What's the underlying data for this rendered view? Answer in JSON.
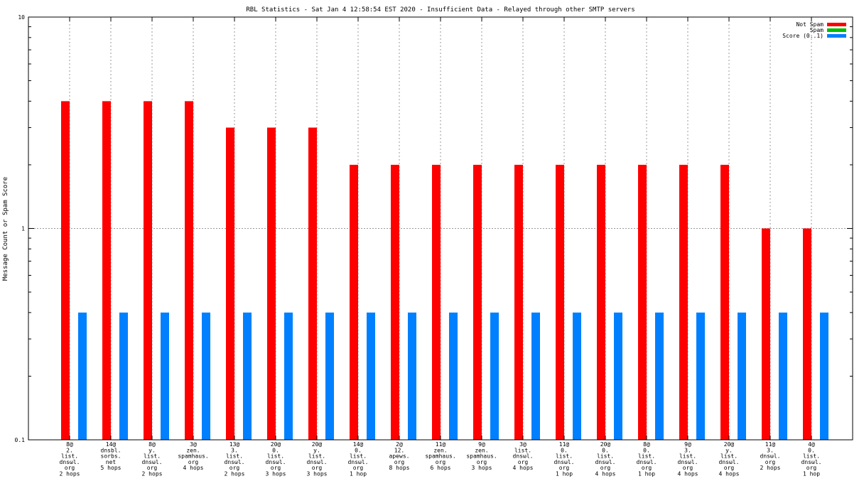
{
  "chart_data": {
    "type": "bar",
    "title": "RBL Statistics - Sat Jan  4 12:58:54 EST 2020 - Insufficient Data - Relayed through other SMTP servers",
    "ylabel": "Message Count or Spam Score",
    "yscale": "log",
    "ylim": [
      0.1,
      10
    ],
    "yticks": [
      "10",
      "1",
      "0.1"
    ],
    "grid": true,
    "legend_position": "top-right",
    "categories": [
      [
        "8@",
        "2.",
        "list.",
        "dnsωl.",
        "org",
        "2 hops"
      ],
      [
        "14@",
        "dnsbl.",
        "sorbs.",
        "net",
        "5 hops"
      ],
      [
        "8@",
        "y.",
        "list.",
        "dnsωl.",
        "org",
        "2 hops"
      ],
      [
        "3@",
        "zen.",
        "spamhaus.",
        "org",
        "4 hops"
      ],
      [
        "13@",
        "3.",
        "list.",
        "dnsωl.",
        "org",
        "2 hops"
      ],
      [
        "20@",
        "0.",
        "list.",
        "dnsωl.",
        "org",
        "3 hops"
      ],
      [
        "20@",
        "y.",
        "list.",
        "dnsωl.",
        "org",
        "3 hops"
      ],
      [
        "14@",
        "0.",
        "list.",
        "dnsωl.",
        "org",
        "1 hop"
      ],
      [
        "2@",
        "12.",
        "apews.",
        "org",
        "8 hops"
      ],
      [
        "11@",
        "zen.",
        "spamhaus.",
        "org",
        "6 hops"
      ],
      [
        "9@",
        "zen.",
        "spamhaus.",
        "org",
        "3 hops"
      ],
      [
        "3@",
        "list.",
        "dnsωl.",
        "org",
        "4 hops"
      ],
      [
        "11@",
        "0.",
        "list.",
        "dnsωl.",
        "org",
        "1 hop"
      ],
      [
        "20@",
        "0.",
        "list.",
        "dnsωl.",
        "org",
        "4 hops"
      ],
      [
        "8@",
        "0.",
        "list.",
        "dnsωl.",
        "org",
        "1 hop"
      ],
      [
        "9@",
        "3.",
        "list.",
        "dnsωl.",
        "org",
        "4 hops"
      ],
      [
        "20@",
        "y.",
        "list.",
        "dnsωl.",
        "org",
        "4 hops"
      ],
      [
        "11@",
        "3.",
        "dnsωl.",
        "org",
        "2 hops"
      ],
      [
        "4@",
        "0.",
        "list.",
        "dnsωl.",
        "org",
        "1 hop"
      ]
    ],
    "series": [
      {
        "name": "Not Spam",
        "color": "#ff0000",
        "values": [
          4,
          4,
          4,
          4,
          3,
          3,
          3,
          2,
          2,
          2,
          2,
          2,
          2,
          2,
          2,
          2,
          2,
          1,
          1
        ]
      },
      {
        "name": "Spam",
        "color": "#00c000",
        "values": [
          0,
          0,
          0,
          0,
          0,
          0,
          0,
          0,
          0,
          0,
          0,
          0,
          0,
          0,
          0,
          0,
          0,
          0,
          0
        ]
      },
      {
        "name": "Score (0..1)",
        "color": "#0080ff",
        "values": [
          0.4,
          0.4,
          0.4,
          0.4,
          0.4,
          0.4,
          0.4,
          0.4,
          0.4,
          0.4,
          0.4,
          0.4,
          0.4,
          0.4,
          0.4,
          0.4,
          0.4,
          0.4,
          0.4
        ]
      }
    ]
  }
}
